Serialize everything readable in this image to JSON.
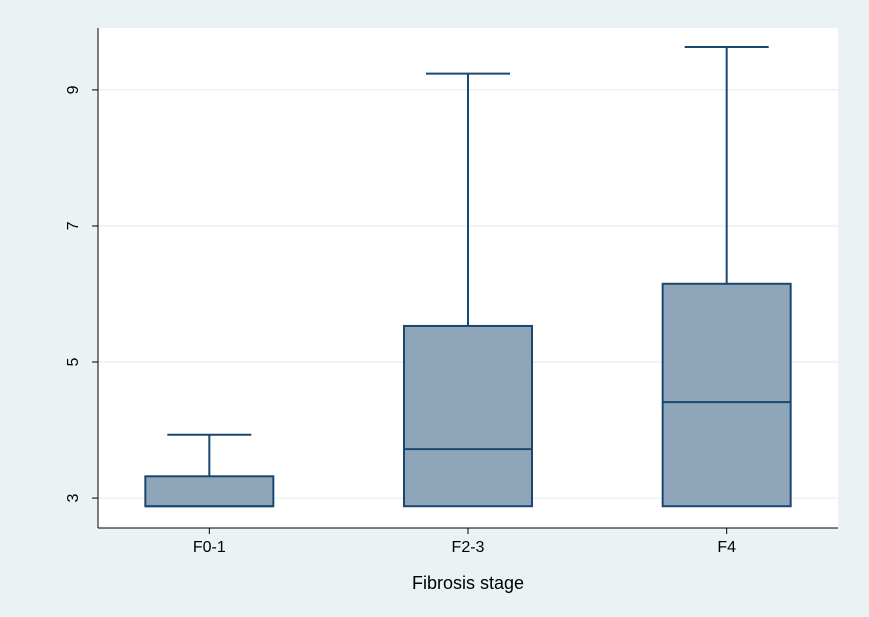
{
  "chart_data": {
    "type": "box",
    "x_label": "Fibrosis stage",
    "categories": [
      "F0-1",
      "F2-3",
      "F4"
    ],
    "boxes": [
      {
        "min": 2.88,
        "q1": 2.88,
        "median": 2.88,
        "q3": 3.32,
        "max": 3.93
      },
      {
        "min": 2.88,
        "q1": 2.88,
        "median": 3.72,
        "q3": 5.53,
        "max": 9.24
      },
      {
        "min": 2.88,
        "q1": 2.88,
        "median": 4.41,
        "q3": 6.15,
        "max": 9.63
      }
    ],
    "color": "#8ea5ba",
    "edge_color": "#1a476f",
    "ylim": [
      2.56,
      9.91
    ],
    "yticks": [
      3,
      5,
      7,
      9
    ],
    "grid": true
  }
}
